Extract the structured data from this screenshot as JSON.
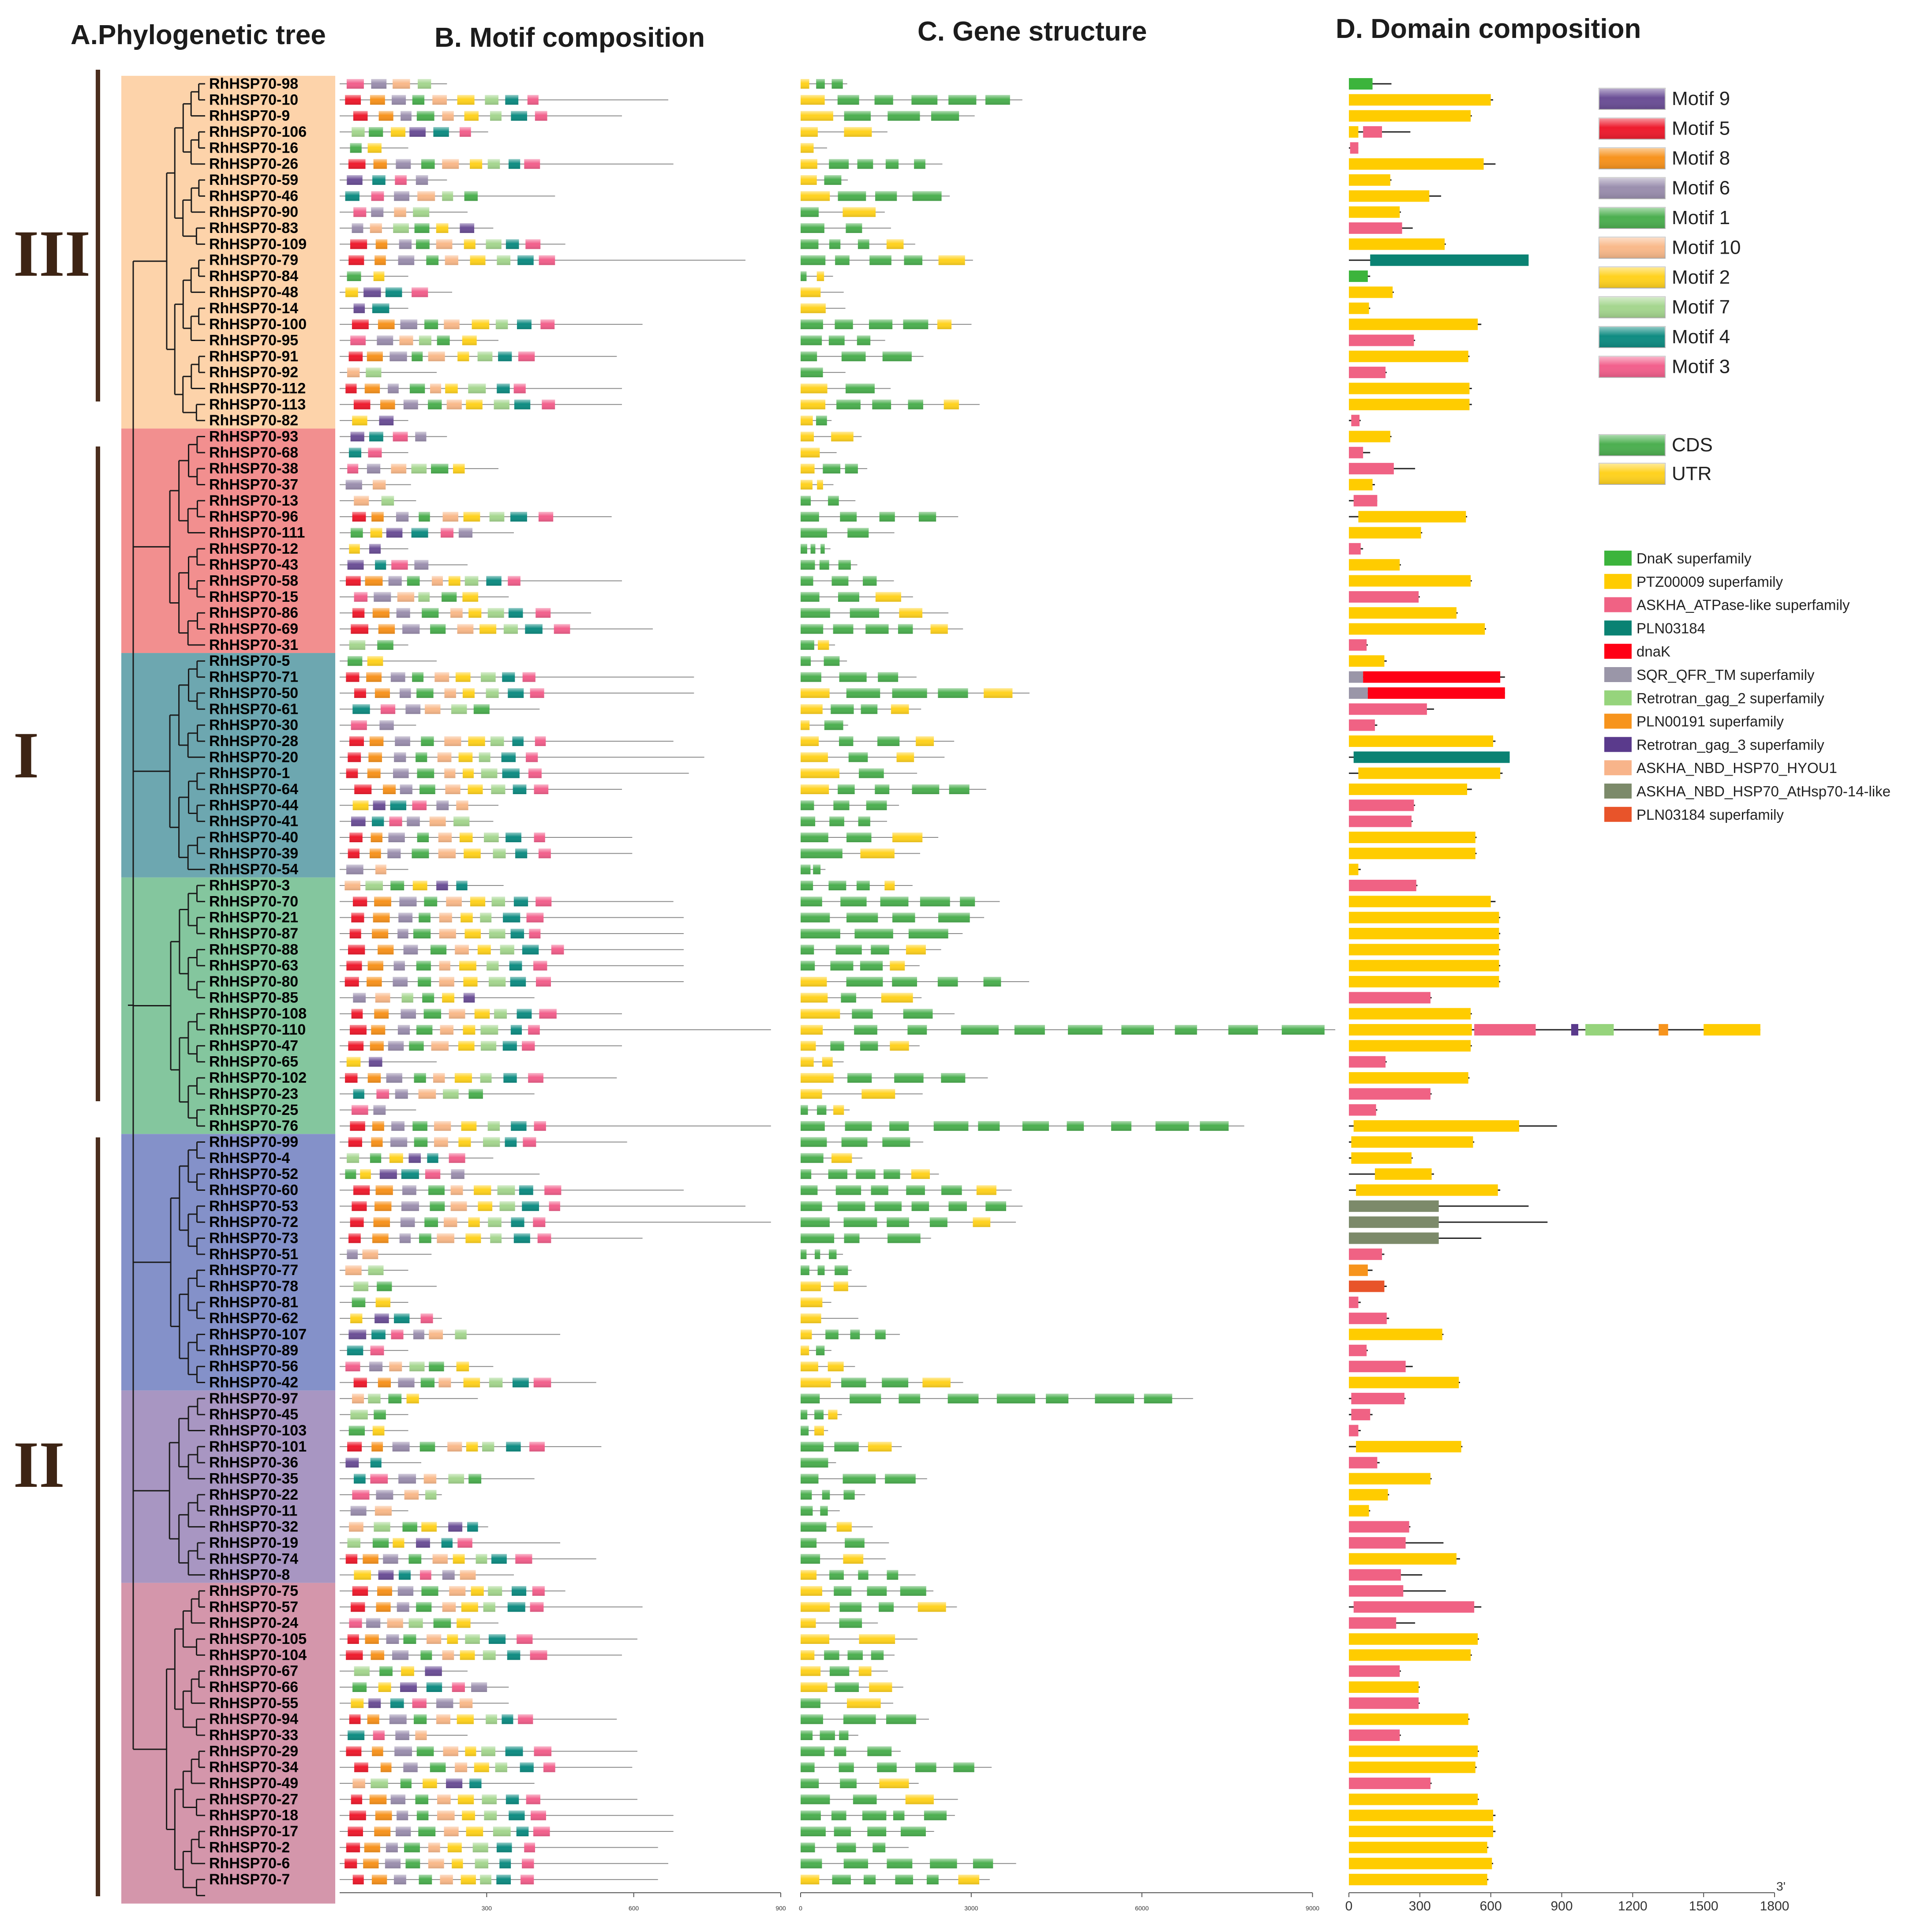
{
  "panel_titles": {
    "a": "A.Phylogenetic tree",
    "b": "B. Motif composition",
    "c": "C. Gene structure",
    "d": "D. Domain composition"
  },
  "groups": [
    {
      "label": "III",
      "color": "#fdd3aa",
      "start": 0,
      "end": 21
    },
    {
      "label": "I",
      "color": "#f28f8f",
      "start": 22,
      "end": 35
    },
    {
      "label": "",
      "color": "#6da7b0",
      "start": 36,
      "end": 49
    },
    {
      "label": "",
      "color": "#84c69e",
      "start": 50,
      "end": 65
    },
    {
      "label": "II",
      "color": "#8491c9",
      "start": 66,
      "end": 81
    },
    {
      "label": "",
      "color": "#a896c2",
      "start": 82,
      "end": 93
    },
    {
      "label": "",
      "color": "#d496ab",
      "start": 94,
      "end": 113
    }
  ],
  "bracket_labels": {
    "III": "III",
    "I": "I",
    "II": "II"
  },
  "genes": [
    "RhHSP70-98",
    "RhHSP70-10",
    "RhHSP70-9",
    "RhHSP70-106",
    "RhHSP70-16",
    "RhHSP70-26",
    "RhHSP70-59",
    "RhHSP70-46",
    "RhHSP70-90",
    "RhHSP70-83",
    "RhHSP70-109",
    "RhHSP70-79",
    "RhHSP70-84",
    "RhHSP70-48",
    "RhHSP70-14",
    "RhHSP70-100",
    "RhHSP70-95",
    "RhHSP70-91",
    "RhHSP70-92",
    "RhHSP70-112",
    "RhHSP70-113",
    "RhHSP70-82",
    "RhHSP70-93",
    "RhHSP70-68",
    "RhHSP70-38",
    "RhHSP70-37",
    "RhHSP70-13",
    "RhHSP70-96",
    "RhHSP70-111",
    "RhHSP70-12",
    "RhHSP70-43",
    "RhHSP70-58",
    "RhHSP70-15",
    "RhHSP70-86",
    "RhHSP70-69",
    "RhHSP70-31",
    "RhHSP70-5",
    "RhHSP70-71",
    "RhHSP70-50",
    "RhHSP70-61",
    "RhHSP70-30",
    "RhHSP70-28",
    "RhHSP70-20",
    "RhHSP70-1",
    "RhHSP70-64",
    "RhHSP70-44",
    "RhHSP70-41",
    "RhHSP70-40",
    "RhHSP70-39",
    "RhHSP70-54",
    "RhHSP70-3",
    "RhHSP70-70",
    "RhHSP70-21",
    "RhHSP70-87",
    "RhHSP70-88",
    "RhHSP70-63",
    "RhHSP70-80",
    "RhHSP70-85",
    "RhHSP70-108",
    "RhHSP70-110",
    "RhHSP70-47",
    "RhHSP70-65",
    "RhHSP70-102",
    "RhHSP70-23",
    "RhHSP70-25",
    "RhHSP70-76",
    "RhHSP70-99",
    "RhHSP70-4",
    "RhHSP70-52",
    "RhHSP70-60",
    "RhHSP70-53",
    "RhHSP70-72",
    "RhHSP70-73",
    "RhHSP70-51",
    "RhHSP70-77",
    "RhHSP70-78",
    "RhHSP70-81",
    "RhHSP70-62",
    "RhHSP70-107",
    "RhHSP70-89",
    "RhHSP70-56",
    "RhHSP70-42",
    "RhHSP70-97",
    "RhHSP70-45",
    "RhHSP70-103",
    "RhHSP70-101",
    "RhHSP70-36",
    "RhHSP70-35",
    "RhHSP70-22",
    "RhHSP70-11",
    "RhHSP70-32",
    "RhHSP70-19",
    "RhHSP70-74",
    "RhHSP70-8",
    "RhHSP70-75",
    "RhHSP70-57",
    "RhHSP70-24",
    "RhHSP70-105",
    "RhHSP70-104",
    "RhHSP70-67",
    "RhHSP70-66",
    "RhHSP70-55",
    "RhHSP70-94",
    "RhHSP70-33",
    "RhHSP70-29",
    "RhHSP70-34",
    "RhHSP70-49",
    "RhHSP70-27",
    "RhHSP70-18",
    "RhHSP70-17",
    "RhHSP70-2",
    "RhHSP70-6",
    "RhHSP70-7"
  ],
  "motif_legend": [
    {
      "name": "Motif 9",
      "color": "#6b4f96"
    },
    {
      "name": "Motif 5",
      "color": "#ee1c2e"
    },
    {
      "name": "Motif 8",
      "color": "#f7931e"
    },
    {
      "name": "Motif 6",
      "color": "#9b8fae"
    },
    {
      "name": "Motif 1",
      "color": "#4caf50"
    },
    {
      "name": "Motif 10",
      "color": "#f9b98a"
    },
    {
      "name": "Motif 2",
      "color": "#ffd21f"
    },
    {
      "name": "Motif 7",
      "color": "#a5d68f"
    },
    {
      "name": "Motif 4",
      "color": "#0f8c82"
    },
    {
      "name": "Motif 3",
      "color": "#f2608c"
    }
  ],
  "structure_legend": [
    {
      "name": "CDS",
      "color": "#4caf50"
    },
    {
      "name": "UTR",
      "color": "#ffd21f"
    }
  ],
  "domain_legend": [
    {
      "name": "DnaK superfamily",
      "color": "#3cb43c"
    },
    {
      "name": "PTZ00009 superfamily",
      "color": "#ffcc00"
    },
    {
      "name": "ASKHA_ATPase-like superfamily",
      "color": "#f06284"
    },
    {
      "name": "PLN03184",
      "color": "#0a8273"
    },
    {
      "name": "dnaK",
      "color": "#ff0015"
    },
    {
      "name": "SQR_QFR_TM superfamily",
      "color": "#9a96a8"
    },
    {
      "name": "Retrotran_gag_2 superfamily",
      "color": "#96d47c"
    },
    {
      "name": "PLN00191 superfamily",
      "color": "#f7941d"
    },
    {
      "name": "Retrotran_gag_3 superfamily",
      "color": "#5a3a8c"
    },
    {
      "name": "ASKHA_NBD_HSP70_HYOU1",
      "color": "#f8b48a"
    },
    {
      "name": "ASKHA_NBD_HSP70_AtHsp70-14-like",
      "color": "#7c8a6a"
    },
    {
      "name": "PLN03184 superfamily",
      "color": "#e8542a"
    }
  ],
  "axis_motif": {
    "ticks": [
      "300",
      "600",
      "900"
    ],
    "max": 900
  },
  "axis_structure": {
    "ticks": [
      "0",
      "3000",
      "6000",
      "9000"
    ],
    "max": 9500
  },
  "axis_domain": {
    "ticks": [
      "0",
      "300",
      "600",
      "900",
      "1200",
      "1500",
      "1800"
    ],
    "max": 1800,
    "end_label": "3'"
  },
  "domain_data": [
    {
      "len": 180,
      "d": [
        [
          0,
          100,
          0
        ]
      ]
    },
    {
      "len": 610,
      "d": [
        [
          0,
          600,
          1
        ]
      ]
    },
    {
      "len": 520,
      "d": [
        [
          0,
          515,
          1
        ]
      ]
    },
    {
      "len": 260,
      "d": [
        [
          0,
          40,
          1
        ],
        [
          60,
          140,
          2
        ]
      ]
    },
    {
      "len": 40,
      "d": [
        [
          5,
          40,
          2
        ]
      ]
    },
    {
      "len": 620,
      "d": [
        [
          0,
          570,
          1
        ]
      ]
    },
    {
      "len": 180,
      "d": [
        [
          0,
          175,
          1
        ]
      ]
    },
    {
      "len": 390,
      "d": [
        [
          0,
          340,
          1
        ]
      ]
    },
    {
      "len": 220,
      "d": [
        [
          0,
          215,
          1
        ]
      ]
    },
    {
      "len": 270,
      "d": [
        [
          0,
          225,
          2
        ]
      ]
    },
    {
      "len": 410,
      "d": [
        [
          0,
          405,
          1
        ]
      ]
    },
    {
      "len": 760,
      "d": [
        [
          90,
          760,
          3
        ]
      ]
    },
    {
      "len": 90,
      "d": [
        [
          0,
          80,
          0
        ]
      ]
    },
    {
      "len": 190,
      "d": [
        [
          0,
          185,
          1
        ]
      ]
    },
    {
      "len": 90,
      "d": [
        [
          0,
          85,
          1
        ]
      ]
    },
    {
      "len": 560,
      "d": [
        [
          0,
          545,
          1
        ]
      ]
    },
    {
      "len": 280,
      "d": [
        [
          0,
          275,
          2
        ]
      ]
    },
    {
      "len": 510,
      "d": [
        [
          0,
          505,
          1
        ]
      ]
    },
    {
      "len": 160,
      "d": [
        [
          0,
          155,
          2
        ]
      ]
    },
    {
      "len": 520,
      "d": [
        [
          0,
          510,
          1
        ]
      ]
    },
    {
      "len": 520,
      "d": [
        [
          0,
          510,
          1
        ]
      ]
    },
    {
      "len": 50,
      "d": [
        [
          10,
          45,
          2
        ]
      ]
    },
    {
      "len": 180,
      "d": [
        [
          0,
          175,
          1
        ]
      ]
    },
    {
      "len": 90,
      "d": [
        [
          0,
          60,
          2
        ]
      ]
    },
    {
      "len": 280,
      "d": [
        [
          0,
          190,
          2
        ]
      ]
    },
    {
      "len": 110,
      "d": [
        [
          0,
          100,
          1
        ]
      ]
    },
    {
      "len": 120,
      "d": [
        [
          20,
          120,
          2
        ]
      ]
    },
    {
      "len": 500,
      "d": [
        [
          40,
          495,
          1
        ]
      ]
    },
    {
      "len": 310,
      "d": [
        [
          0,
          305,
          1
        ]
      ]
    },
    {
      "len": 60,
      "d": [
        [
          0,
          50,
          2
        ]
      ]
    },
    {
      "len": 220,
      "d": [
        [
          0,
          215,
          1
        ]
      ]
    },
    {
      "len": 520,
      "d": [
        [
          0,
          515,
          1
        ]
      ]
    },
    {
      "len": 300,
      "d": [
        [
          0,
          295,
          2
        ]
      ]
    },
    {
      "len": 460,
      "d": [
        [
          0,
          455,
          1
        ]
      ]
    },
    {
      "len": 580,
      "d": [
        [
          0,
          575,
          1
        ]
      ]
    },
    {
      "len": 80,
      "d": [
        [
          0,
          75,
          2
        ]
      ]
    },
    {
      "len": 160,
      "d": [
        [
          0,
          150,
          1
        ]
      ]
    },
    {
      "len": 660,
      "d": [
        [
          0,
          60,
          5
        ],
        [
          60,
          640,
          4
        ]
      ]
    },
    {
      "len": 660,
      "d": [
        [
          0,
          80,
          5
        ],
        [
          80,
          660,
          4
        ]
      ]
    },
    {
      "len": 360,
      "d": [
        [
          0,
          330,
          2
        ]
      ]
    },
    {
      "len": 120,
      "d": [
        [
          0,
          110,
          2
        ]
      ]
    },
    {
      "len": 620,
      "d": [
        [
          0,
          610,
          1
        ]
      ]
    },
    {
      "len": 680,
      "d": [
        [
          20,
          680,
          3
        ]
      ]
    },
    {
      "len": 650,
      "d": [
        [
          40,
          640,
          1
        ]
      ]
    },
    {
      "len": 520,
      "d": [
        [
          0,
          500,
          1
        ]
      ]
    },
    {
      "len": 280,
      "d": [
        [
          0,
          275,
          2
        ]
      ]
    },
    {
      "len": 270,
      "d": [
        [
          0,
          265,
          2
        ]
      ]
    },
    {
      "len": 540,
      "d": [
        [
          0,
          535,
          1
        ]
      ]
    },
    {
      "len": 540,
      "d": [
        [
          0,
          535,
          1
        ]
      ]
    },
    {
      "len": 50,
      "d": [
        [
          0,
          40,
          1
        ]
      ]
    },
    {
      "len": 290,
      "d": [
        [
          0,
          285,
          2
        ]
      ]
    },
    {
      "len": 620,
      "d": [
        [
          0,
          600,
          1
        ]
      ]
    },
    {
      "len": 640,
      "d": [
        [
          0,
          635,
          1
        ]
      ]
    },
    {
      "len": 640,
      "d": [
        [
          0,
          635,
          1
        ]
      ]
    },
    {
      "len": 640,
      "d": [
        [
          0,
          635,
          1
        ]
      ]
    },
    {
      "len": 640,
      "d": [
        [
          0,
          635,
          1
        ]
      ]
    },
    {
      "len": 640,
      "d": [
        [
          0,
          635,
          1
        ]
      ]
    },
    {
      "len": 350,
      "d": [
        [
          0,
          345,
          2
        ]
      ]
    },
    {
      "len": 520,
      "d": [
        [
          0,
          515,
          1
        ]
      ]
    },
    {
      "len": 1740,
      "d": [
        [
          0,
          520,
          1
        ],
        [
          530,
          790,
          2
        ],
        [
          940,
          970,
          8
        ],
        [
          1000,
          1120,
          6
        ],
        [
          1310,
          1350,
          7
        ],
        [
          1500,
          1740,
          1
        ]
      ]
    },
    {
      "len": 520,
      "d": [
        [
          0,
          515,
          1
        ]
      ]
    },
    {
      "len": 160,
      "d": [
        [
          0,
          155,
          2
        ]
      ]
    },
    {
      "len": 510,
      "d": [
        [
          0,
          505,
          1
        ]
      ]
    },
    {
      "len": 350,
      "d": [
        [
          0,
          345,
          2
        ]
      ]
    },
    {
      "len": 120,
      "d": [
        [
          0,
          115,
          2
        ]
      ]
    },
    {
      "len": 880,
      "d": [
        [
          20,
          720,
          1
        ]
      ]
    },
    {
      "len": 530,
      "d": [
        [
          10,
          525,
          1
        ]
      ]
    },
    {
      "len": 270,
      "d": [
        [
          10,
          265,
          1
        ]
      ]
    },
    {
      "len": 360,
      "d": [
        [
          110,
          350,
          1
        ]
      ]
    },
    {
      "len": 640,
      "d": [
        [
          30,
          630,
          1
        ]
      ]
    },
    {
      "len": 760,
      "d": [
        [
          0,
          380,
          10
        ]
      ]
    },
    {
      "len": 840,
      "d": [
        [
          0,
          380,
          10
        ]
      ]
    },
    {
      "len": 560,
      "d": [
        [
          0,
          380,
          10
        ]
      ]
    },
    {
      "len": 150,
      "d": [
        [
          0,
          140,
          2
        ]
      ]
    },
    {
      "len": 100,
      "d": [
        [
          0,
          80,
          7
        ]
      ]
    },
    {
      "len": 160,
      "d": [
        [
          0,
          150,
          11
        ]
      ]
    },
    {
      "len": 50,
      "d": [
        [
          0,
          40,
          2
        ]
      ]
    },
    {
      "len": 170,
      "d": [
        [
          0,
          160,
          2
        ]
      ]
    },
    {
      "len": 400,
      "d": [
        [
          0,
          395,
          1
        ]
      ]
    },
    {
      "len": 80,
      "d": [
        [
          0,
          75,
          2
        ]
      ]
    },
    {
      "len": 270,
      "d": [
        [
          0,
          240,
          2
        ]
      ]
    },
    {
      "len": 470,
      "d": [
        [
          0,
          465,
          1
        ]
      ]
    },
    {
      "len": 240,
      "d": [
        [
          10,
          235,
          2
        ]
      ]
    },
    {
      "len": 100,
      "d": [
        [
          10,
          90,
          2
        ]
      ]
    },
    {
      "len": 50,
      "d": [
        [
          0,
          40,
          2
        ]
      ]
    },
    {
      "len": 480,
      "d": [
        [
          30,
          475,
          1
        ]
      ]
    },
    {
      "len": 130,
      "d": [
        [
          0,
          120,
          2
        ]
      ]
    },
    {
      "len": 350,
      "d": [
        [
          0,
          345,
          1
        ]
      ]
    },
    {
      "len": 170,
      "d": [
        [
          0,
          165,
          1
        ]
      ]
    },
    {
      "len": 90,
      "d": [
        [
          0,
          85,
          1
        ]
      ]
    },
    {
      "len": 260,
      "d": [
        [
          0,
          255,
          2
        ]
      ]
    },
    {
      "len": 400,
      "d": [
        [
          0,
          240,
          2
        ]
      ]
    },
    {
      "len": 470,
      "d": [
        [
          0,
          455,
          1
        ]
      ]
    },
    {
      "len": 310,
      "d": [
        [
          0,
          220,
          2
        ]
      ]
    },
    {
      "len": 410,
      "d": [
        [
          0,
          230,
          2
        ]
      ]
    },
    {
      "len": 560,
      "d": [
        [
          20,
          530,
          2
        ]
      ]
    },
    {
      "len": 280,
      "d": [
        [
          0,
          200,
          2
        ]
      ]
    },
    {
      "len": 550,
      "d": [
        [
          0,
          545,
          1
        ]
      ]
    },
    {
      "len": 520,
      "d": [
        [
          0,
          515,
          1
        ]
      ]
    },
    {
      "len": 220,
      "d": [
        [
          0,
          215,
          2
        ]
      ]
    },
    {
      "len": 300,
      "d": [
        [
          0,
          295,
          1
        ]
      ]
    },
    {
      "len": 300,
      "d": [
        [
          0,
          295,
          2
        ]
      ]
    },
    {
      "len": 510,
      "d": [
        [
          0,
          505,
          1
        ]
      ]
    },
    {
      "len": 220,
      "d": [
        [
          0,
          215,
          2
        ]
      ]
    },
    {
      "len": 550,
      "d": [
        [
          0,
          545,
          1
        ]
      ]
    },
    {
      "len": 540,
      "d": [
        [
          0,
          535,
          1
        ]
      ]
    },
    {
      "len": 350,
      "d": [
        [
          0,
          345,
          2
        ]
      ]
    },
    {
      "len": 550,
      "d": [
        [
          0,
          545,
          1
        ]
      ]
    },
    {
      "len": 620,
      "d": [
        [
          0,
          610,
          1
        ]
      ]
    },
    {
      "len": 620,
      "d": [
        [
          0,
          610,
          1
        ]
      ]
    },
    {
      "len": 590,
      "d": [
        [
          0,
          585,
          1
        ]
      ]
    },
    {
      "len": 610,
      "d": [
        [
          0,
          605,
          1
        ]
      ]
    },
    {
      "len": 590,
      "d": [
        [
          0,
          585,
          1
        ]
      ]
    }
  ]
}
